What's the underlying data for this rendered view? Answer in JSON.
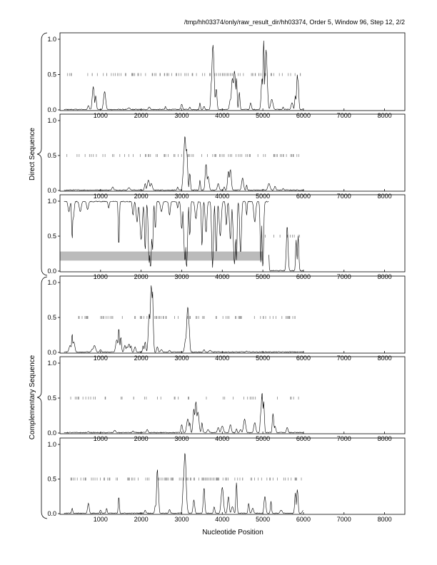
{
  "chart_data": {
    "type": "line",
    "title": "/tmp/hh03374/only/raw_result_dir/hh03374, Order 5, Window 96, Step 12, 2/2",
    "xlabel": "Nucleotide Position",
    "xlim": [
      0,
      8500
    ],
    "x_ticks": [
      1000,
      2000,
      3000,
      4000,
      5000,
      6000,
      7000,
      8000
    ],
    "x_tick_labels": [
      "1000",
      "2000",
      "3000",
      "4000",
      "5000",
      "6000",
      "7000",
      "8000"
    ],
    "ylim": [
      0,
      1
    ],
    "y_ticks": [
      0,
      0.5,
      1
    ],
    "y_tick_labels": [
      "0.0",
      "0.5",
      "1.0"
    ],
    "group_labels": {
      "direct": "Direct Sequence",
      "complementary": "Complementary Sequence"
    },
    "panels": [
      {
        "name": "frame1-direct",
        "group": "direct",
        "inverted": false,
        "peaks": [
          [
            700,
            0.06
          ],
          [
            820,
            0.33
          ],
          [
            880,
            0.2
          ],
          [
            1100,
            0.26
          ],
          [
            1700,
            0.03
          ],
          [
            2200,
            0.04
          ],
          [
            2600,
            0.05
          ],
          [
            3000,
            0.08
          ],
          [
            3200,
            0.04
          ],
          [
            3450,
            0.1
          ],
          [
            3550,
            0.05
          ],
          [
            3730,
            0.38
          ],
          [
            3770,
            0.92
          ],
          [
            3850,
            0.3
          ],
          [
            4200,
            0.15
          ],
          [
            4250,
            0.45
          ],
          [
            4300,
            0.55
          ],
          [
            4350,
            0.45
          ],
          [
            4420,
            0.25
          ],
          [
            4700,
            0.1
          ],
          [
            4980,
            0.45
          ],
          [
            5020,
            0.98
          ],
          [
            5080,
            0.85
          ],
          [
            5220,
            0.15
          ],
          [
            5500,
            0.04
          ],
          [
            5720,
            0.1
          ],
          [
            5800,
            0.2
          ],
          [
            5850,
            0.5
          ],
          [
            5870,
            0.4
          ]
        ],
        "marker_range": [
          150,
          5950
        ],
        "marker_count": 95,
        "highlight": null
      },
      {
        "name": "frame2-direct",
        "group": "direct",
        "inverted": false,
        "peaks": [
          [
            1300,
            0.05
          ],
          [
            1700,
            0.04
          ],
          [
            2100,
            0.1
          ],
          [
            2180,
            0.15
          ],
          [
            2250,
            0.1
          ],
          [
            2900,
            0.05
          ],
          [
            3050,
            0.35
          ],
          [
            3080,
            0.78
          ],
          [
            3120,
            0.6
          ],
          [
            3200,
            0.25
          ],
          [
            3450,
            0.15
          ],
          [
            3600,
            0.38
          ],
          [
            3650,
            0.2
          ],
          [
            3900,
            0.1
          ],
          [
            4050,
            0.05
          ],
          [
            4150,
            0.28
          ],
          [
            4200,
            0.3
          ],
          [
            4500,
            0.18
          ],
          [
            4600,
            0.08
          ],
          [
            5150,
            0.1
          ],
          [
            5300,
            0.06
          ],
          [
            5500,
            0.03
          ]
        ],
        "marker_range": [
          100,
          5950
        ],
        "marker_count": 80,
        "highlight": null
      },
      {
        "name": "frame3-direct",
        "group": "direct",
        "inverted": true,
        "dips": [
          [
            220,
            0.15
          ],
          [
            300,
            0.55
          ],
          [
            330,
            0.25
          ],
          [
            500,
            0.15
          ],
          [
            680,
            0.12
          ],
          [
            1200,
            0.1
          ],
          [
            1450,
            0.65
          ],
          [
            1800,
            0.2
          ],
          [
            1900,
            0.3
          ],
          [
            2000,
            0.55
          ],
          [
            2100,
            0.7
          ],
          [
            2200,
            0.88
          ],
          [
            2230,
            0.95
          ],
          [
            2280,
            0.72
          ],
          [
            2350,
            0.4
          ],
          [
            2500,
            0.15
          ],
          [
            2700,
            0.2
          ],
          [
            2900,
            0.1
          ],
          [
            3000,
            0.4
          ],
          [
            3080,
            0.85
          ],
          [
            3120,
            0.95
          ],
          [
            3200,
            0.5
          ],
          [
            3350,
            0.25
          ],
          [
            3500,
            0.65
          ],
          [
            3600,
            0.45
          ],
          [
            3760,
            0.95
          ],
          [
            3850,
            0.75
          ],
          [
            3950,
            0.5
          ],
          [
            4100,
            0.35
          ],
          [
            4200,
            0.55
          ],
          [
            4300,
            0.9
          ],
          [
            4350,
            0.85
          ],
          [
            4450,
            0.75
          ],
          [
            4600,
            0.2
          ],
          [
            4800,
            0.3
          ],
          [
            4950,
            0.88
          ],
          [
            5000,
            0.95
          ]
        ],
        "tail_peaks": [
          [
            5080,
            0.92
          ],
          [
            5130,
            0.7
          ],
          [
            5600,
            0.65
          ],
          [
            5820,
            0.45
          ],
          [
            5870,
            0.5
          ]
        ],
        "end_x": 5150,
        "marker_range": [
          5050,
          5950
        ],
        "marker_count": 10,
        "highlight": {
          "x_start": 0,
          "x_end": 5000,
          "y_low": 0.15,
          "y_high": 0.28,
          "color": "#bbbbbb"
        }
      },
      {
        "name": "frame1-complementary",
        "group": "complementary",
        "inverted": false,
        "peaks": [
          [
            250,
            0.1
          ],
          [
            300,
            0.27
          ],
          [
            340,
            0.15
          ],
          [
            800,
            0.05
          ],
          [
            850,
            0.1
          ],
          [
            1000,
            0.04
          ],
          [
            1400,
            0.18
          ],
          [
            1450,
            0.36
          ],
          [
            1500,
            0.22
          ],
          [
            1600,
            0.1
          ],
          [
            1650,
            0.08
          ],
          [
            1700,
            0.12
          ],
          [
            1750,
            0.1
          ],
          [
            1850,
            0.08
          ],
          [
            2050,
            0.1
          ],
          [
            2100,
            0.15
          ],
          [
            2200,
            0.55
          ],
          [
            2250,
            0.96
          ],
          [
            2280,
            0.9
          ],
          [
            2300,
            0.35
          ],
          [
            2400,
            0.08
          ],
          [
            2500,
            0.04
          ],
          [
            2700,
            0.03
          ],
          [
            3100,
            0.2
          ],
          [
            3150,
            0.65
          ],
          [
            3180,
            0.4
          ],
          [
            3550,
            0.04
          ],
          [
            3700,
            0.03
          ],
          [
            4600,
            0.02
          ]
        ],
        "marker_range": [
          450,
          5950
        ],
        "marker_count": 80,
        "highlight": null
      },
      {
        "name": "frame2-complementary",
        "group": "complementary",
        "inverted": false,
        "peaks": [
          [
            700,
            0.02
          ],
          [
            1350,
            0.04
          ],
          [
            1800,
            0.03
          ],
          [
            2150,
            0.05
          ],
          [
            3000,
            0.12
          ],
          [
            3150,
            0.2
          ],
          [
            3200,
            0.15
          ],
          [
            3300,
            0.35
          ],
          [
            3350,
            0.45
          ],
          [
            3400,
            0.3
          ],
          [
            3500,
            0.15
          ],
          [
            3650,
            0.05
          ],
          [
            3900,
            0.08
          ],
          [
            4000,
            0.1
          ],
          [
            4200,
            0.12
          ],
          [
            4350,
            0.06
          ],
          [
            4450,
            0.05
          ],
          [
            4550,
            0.2
          ],
          [
            4800,
            0.15
          ],
          [
            4950,
            0.3
          ],
          [
            4980,
            0.58
          ],
          [
            5020,
            0.45
          ],
          [
            5250,
            0.28
          ],
          [
            5300,
            0.1
          ],
          [
            5600,
            0.08
          ]
        ],
        "marker_range": [
          200,
          5950
        ],
        "marker_count": 45,
        "highlight": null
      },
      {
        "name": "frame3-complementary",
        "group": "complementary",
        "inverted": false,
        "peaks": [
          [
            300,
            0.08
          ],
          [
            700,
            0.15
          ],
          [
            1000,
            0.05
          ],
          [
            1150,
            0.08
          ],
          [
            1450,
            0.25
          ],
          [
            2100,
            0.05
          ],
          [
            2350,
            0.12
          ],
          [
            2400,
            0.65
          ],
          [
            2420,
            0.4
          ],
          [
            2700,
            0.06
          ],
          [
            3050,
            0.55
          ],
          [
            3080,
            0.88
          ],
          [
            3100,
            0.35
          ],
          [
            3300,
            0.2
          ],
          [
            3550,
            0.38
          ],
          [
            3800,
            0.1
          ],
          [
            4000,
            0.38
          ],
          [
            4150,
            0.25
          ],
          [
            4250,
            0.1
          ],
          [
            4350,
            0.45
          ],
          [
            4650,
            0.15
          ],
          [
            4750,
            0.08
          ],
          [
            5050,
            0.25
          ],
          [
            5200,
            0.18
          ],
          [
            5450,
            0.05
          ],
          [
            5800,
            0.3
          ],
          [
            5850,
            0.35
          ],
          [
            6000,
            0.05
          ]
        ],
        "marker_range": [
          250,
          5950
        ],
        "marker_count": 110,
        "highlight": null
      }
    ]
  }
}
